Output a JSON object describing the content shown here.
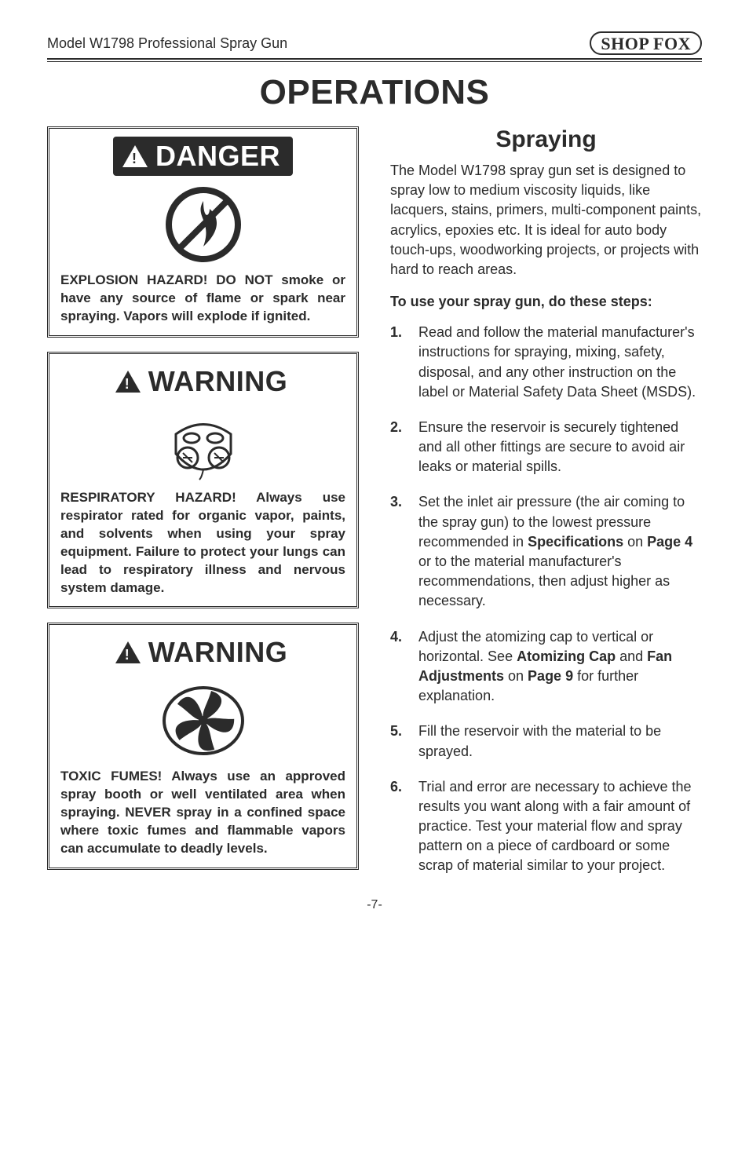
{
  "model_line": "Model W1798 Professional Spray Gun",
  "logo_text": "SHOP FOX",
  "page_title": "OPERATIONS",
  "section_title": "Spraying",
  "intro": "The Model W1798 spray gun set is designed to spray low to medium viscosity liquids, like lacquers, stains, primers, multi-component paints, acrylics, epoxies etc. It is ideal for auto body touch-ups, woodworking projects, or projects with hard to reach areas.",
  "steps_lead": "To use your spray gun, do these steps:",
  "banners": {
    "danger": "DANGER",
    "warning": "WARNING"
  },
  "warnings": {
    "explosion": "EXPLOSION HAZARD! DO NOT smoke or have any source of flame or spark near spraying. Vapors will explode if ignited.",
    "respiratory": "RESPIRATORY HAZARD! Always use respirator rated for organic vapor, paints, and solvents when using your spray equipment. Failure to protect your lungs can lead to respiratory illness and nervous system damage.",
    "toxic": "TOXIC FUMES! Always use an approved spray booth or well ventilated area when spraying. NEVER spray in a confined space where toxic fumes and flammable vapors can accumulate to deadly levels."
  },
  "steps": [
    {
      "n": "1.",
      "html": "Read and follow the material manufacturer's instructions for spraying, mixing, safety, disposal, and any other instruction on the label or Material Safety Data Sheet (MSDS)."
    },
    {
      "n": "2.",
      "html": "Ensure the reservoir is securely tightened and all other fittings are secure to avoid air leaks or material spills."
    },
    {
      "n": "3.",
      "html": "Set the inlet air pressure (the air coming to the spray gun) to the lowest pressure recommended in <b>Specifications</b> on <b>Page 4</b> or to the material manufacturer's recommendations, then adjust higher as necessary."
    },
    {
      "n": "4.",
      "html": "Adjust the atomizing cap to vertical or horizontal. See <b>Atomizing Cap</b> and <b>Fan Adjustments</b> on <b>Page 9</b> for further explanation."
    },
    {
      "n": "5.",
      "html": "Fill the reservoir with the material to be sprayed."
    },
    {
      "n": "6.",
      "html": "Trial and error are necessary to achieve the results you want along with a fair amount of practice. Test your material flow and spray pattern on a piece of cardboard or some scrap of material similar to your project."
    }
  ],
  "page_number": "-7-",
  "colors": {
    "text": "#2b2b2b",
    "bg": "#ffffff"
  }
}
